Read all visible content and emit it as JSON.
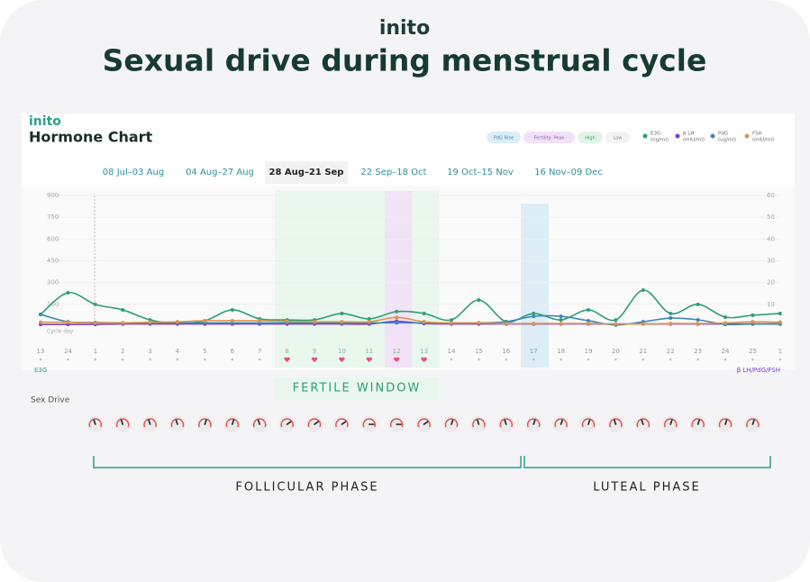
{
  "header": {
    "brand": "inito",
    "title": "Sexual drive during menstrual cycle"
  },
  "card": {
    "brand": "inito",
    "title": "Hormone Chart",
    "status_chips": [
      "PdG Rise",
      "Fertility: Peak",
      "High",
      "Low"
    ],
    "tabs": [
      "08 Jul–03 Aug",
      "04 Aug–27 Aug",
      "28 Aug–21 Sep",
      "22 Sep–18 Oct",
      "19 Oct–15 Nov",
      "16 Nov–09 Dec"
    ],
    "active_tab": 2
  },
  "chart_data": {
    "type": "line",
    "categories": [
      "13",
      "24",
      "1",
      "2",
      "3",
      "4",
      "5",
      "6",
      "7",
      "8",
      "9",
      "10",
      "11",
      "12",
      "13",
      "14",
      "15",
      "16",
      "17",
      "18",
      "19",
      "20",
      "21",
      "22",
      "23",
      "24",
      "25",
      "1"
    ],
    "x_label": "Cycle day",
    "y_label": "E3G",
    "y2_label": "β LH/PdG/FSH",
    "ylim": [
      0,
      900
    ],
    "yticks": [
      150,
      300,
      450,
      600,
      750,
      900
    ],
    "y2lim": [
      0,
      60
    ],
    "y2ticks": [
      10,
      20,
      30,
      40,
      50,
      60
    ],
    "series": [
      {
        "name": "E3G",
        "unit": "(ng/ml)",
        "color": "#2e9e78",
        "values": [
          81,
          230,
          150,
          112,
          43,
          19,
          37,
          112,
          50,
          43,
          43,
          87,
          50,
          100,
          87,
          43,
          180,
          31,
          87,
          43,
          112,
          43,
          248,
          87,
          150,
          62,
          75,
          87
        ]
      },
      {
        "name": "β LH",
        "unit": "(mIU/ml)",
        "color": "#7b3fd1",
        "axis": "y2",
        "values": [
          0.8,
          0.8,
          0.8,
          1,
          1,
          1,
          1,
          1,
          1,
          1,
          1,
          1,
          1,
          2.2,
          1.2,
          1,
          1,
          1,
          1,
          1,
          1,
          1,
          1,
          1,
          1,
          1,
          1,
          1
        ]
      },
      {
        "name": "PdG",
        "unit": "(ug/ml)",
        "color": "#3a86b8",
        "axis": "y2",
        "values": [
          5.4,
          2,
          1.7,
          1.5,
          1.5,
          1.5,
          1.5,
          1.5,
          1.5,
          1.5,
          1.5,
          1.5,
          1.5,
          1.5,
          1.5,
          1.5,
          1.5,
          2,
          4.5,
          4.5,
          2.5,
          0.5,
          2,
          3.7,
          2.9,
          0.8,
          1,
          1
        ]
      },
      {
        "name": "FSH",
        "unit": "(mIU/ml)",
        "color": "#e0944a",
        "axis": "y2",
        "values": [
          1.8,
          1.8,
          1.5,
          1.5,
          1.8,
          2,
          2.5,
          2.5,
          2.5,
          2.2,
          2,
          2,
          2,
          4,
          2,
          1.5,
          1.5,
          1.2,
          1.2,
          1.2,
          1.2,
          1,
          1,
          1.2,
          1.2,
          1.5,
          2,
          1.8
        ]
      }
    ]
  },
  "fertile_window": "FERTILE WINDOW",
  "sex_drive": {
    "label": "Sex Drive",
    "vlim": [
      0,
      5
    ],
    "values": [
      2,
      2,
      2,
      2,
      3,
      3,
      2,
      4,
      4,
      4,
      5,
      5,
      4,
      3,
      2,
      2,
      3,
      3,
      3,
      2,
      2,
      3,
      3,
      3,
      3
    ]
  },
  "phases": [
    "FOLLICULAR PHASE",
    "LUTEAL PHASE"
  ]
}
